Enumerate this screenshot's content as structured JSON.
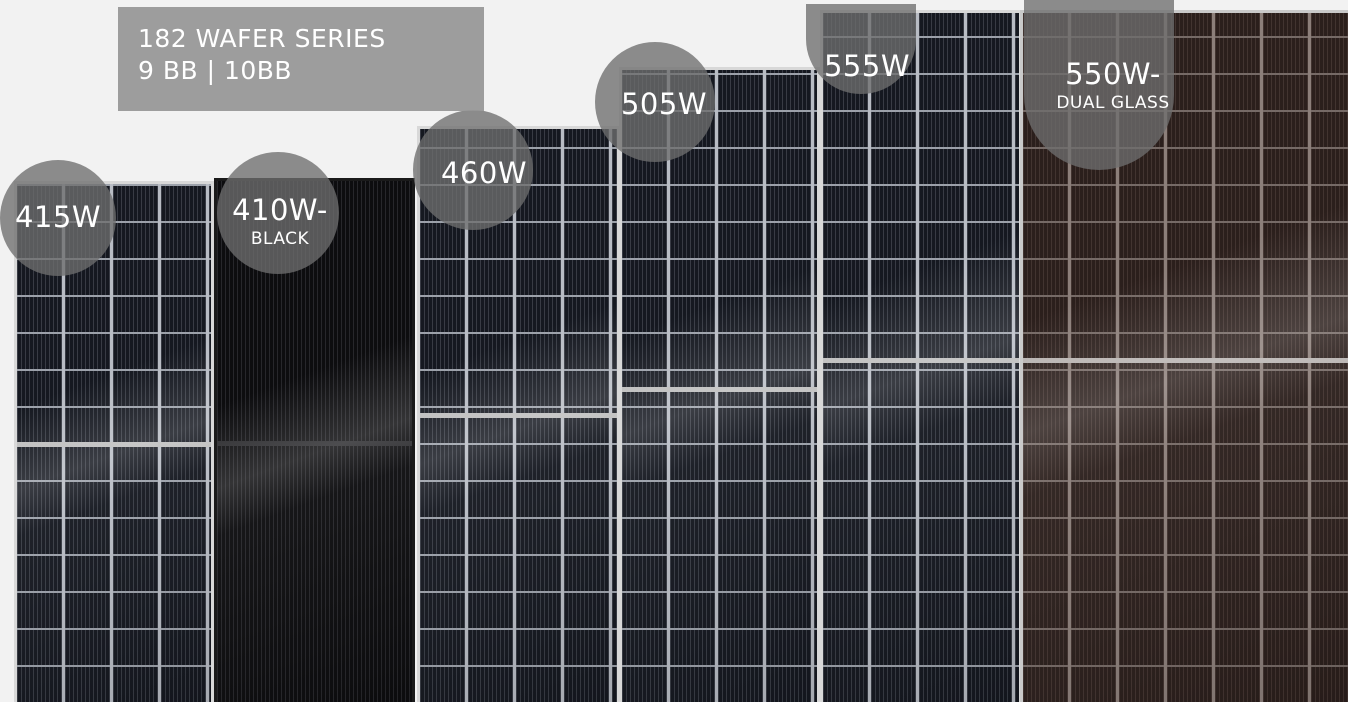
{
  "series": {
    "line1": "182 WAFER SERIES",
    "line2": "9 BB  |  10BB"
  },
  "products": [
    {
      "main": "415W",
      "sub": ""
    },
    {
      "main": "410W-",
      "sub": "BLACK"
    },
    {
      "main": "460W",
      "sub": ""
    },
    {
      "main": "505W",
      "sub": ""
    },
    {
      "main": "555W",
      "sub": ""
    },
    {
      "main": "550W-",
      "sub": "DUAL GLASS"
    }
  ]
}
